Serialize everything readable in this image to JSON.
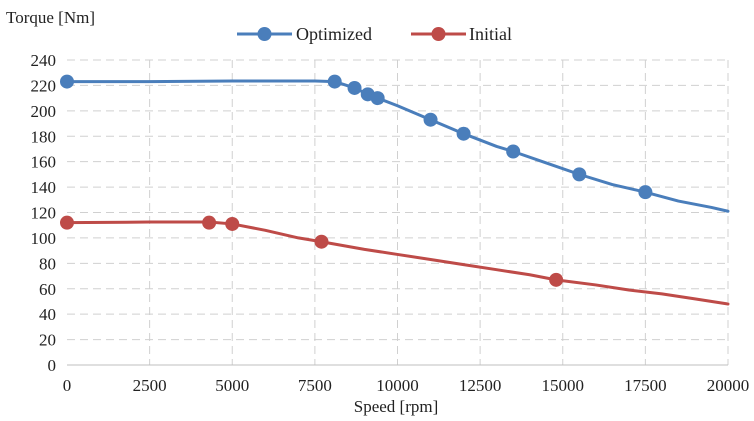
{
  "chart_data": {
    "type": "line",
    "title": "",
    "xlabel": "Speed [rpm]",
    "ylabel": "Torque [Nm]",
    "xlim": [
      0,
      20000
    ],
    "ylim": [
      0,
      240
    ],
    "xticks": [
      0,
      2500,
      5000,
      7500,
      10000,
      12500,
      15000,
      17500,
      20000
    ],
    "yticks": [
      0,
      20,
      40,
      60,
      80,
      100,
      120,
      140,
      160,
      180,
      200,
      220,
      240
    ],
    "grid": true,
    "legend": "top-center",
    "series": [
      {
        "name": "Optimized",
        "color": "#4a7ebb",
        "curve": [
          [
            0,
            223
          ],
          [
            2500,
            223
          ],
          [
            5000,
            223.5
          ],
          [
            7500,
            223.5
          ],
          [
            8100,
            223
          ],
          [
            8700,
            218
          ],
          [
            9100,
            213
          ],
          [
            9400,
            210
          ],
          [
            10000,
            204
          ],
          [
            11000,
            193
          ],
          [
            12000,
            182
          ],
          [
            13000,
            172
          ],
          [
            13500,
            168
          ],
          [
            14500,
            159
          ],
          [
            15500,
            150
          ],
          [
            16500,
            142
          ],
          [
            17500,
            136
          ],
          [
            18500,
            129
          ],
          [
            19500,
            124
          ],
          [
            20000,
            121
          ]
        ],
        "markers": [
          [
            0,
            223
          ],
          [
            8100,
            223
          ],
          [
            8700,
            218
          ],
          [
            9100,
            213
          ],
          [
            9400,
            210
          ],
          [
            11000,
            193
          ],
          [
            12000,
            182
          ],
          [
            13500,
            168
          ],
          [
            15500,
            150
          ],
          [
            17500,
            136
          ]
        ]
      },
      {
        "name": "Initial",
        "color": "#be4b48",
        "curve": [
          [
            0,
            112
          ],
          [
            2500,
            112.5
          ],
          [
            4300,
            112.5
          ],
          [
            5000,
            111
          ],
          [
            6000,
            106
          ],
          [
            7000,
            100
          ],
          [
            7700,
            97
          ],
          [
            9000,
            91
          ],
          [
            10000,
            87
          ],
          [
            11000,
            83
          ],
          [
            12000,
            79
          ],
          [
            13000,
            75
          ],
          [
            14000,
            71
          ],
          [
            14800,
            67
          ],
          [
            16000,
            63
          ],
          [
            17000,
            59
          ],
          [
            18000,
            56
          ],
          [
            19000,
            52
          ],
          [
            20000,
            48
          ]
        ],
        "markers": [
          [
            0,
            112
          ],
          [
            4300,
            112
          ],
          [
            5000,
            111
          ],
          [
            7700,
            97
          ],
          [
            14800,
            67
          ]
        ]
      }
    ]
  }
}
